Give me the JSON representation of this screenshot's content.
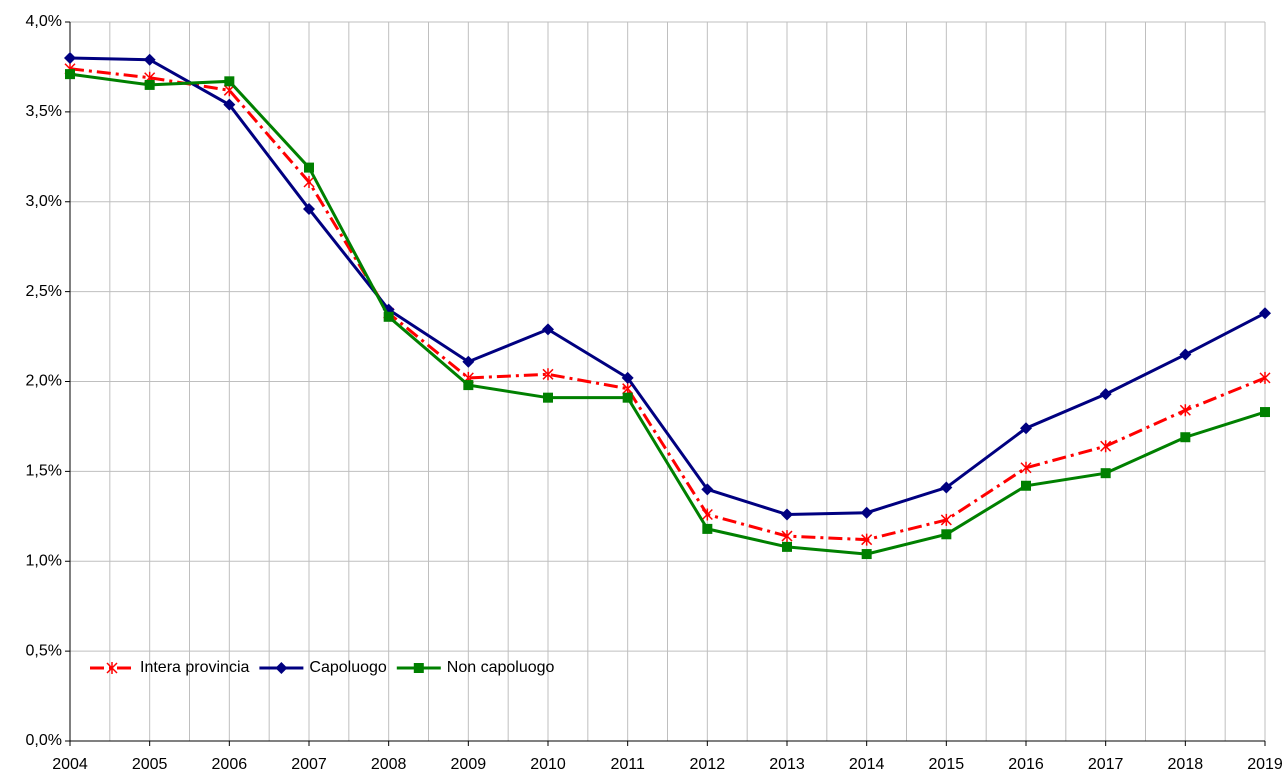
{
  "chart_data": {
    "type": "line",
    "categories": [
      "2004",
      "2005",
      "2006",
      "2007",
      "2008",
      "2009",
      "2010",
      "2011",
      "2012",
      "2013",
      "2014",
      "2015",
      "2016",
      "2017",
      "2018",
      "2019"
    ],
    "series": [
      {
        "name": "Intera provincia",
        "color": "#ff0000",
        "dash": "dashdot",
        "marker": "star",
        "values": [
          3.74,
          3.69,
          3.62,
          3.11,
          2.38,
          2.02,
          2.04,
          1.96,
          1.26,
          1.14,
          1.12,
          1.23,
          1.52,
          1.64,
          1.84,
          2.02
        ]
      },
      {
        "name": "Capoluogo",
        "color": "#000080",
        "marker": "diamond",
        "values": [
          3.8,
          3.79,
          3.54,
          2.96,
          2.4,
          2.11,
          2.29,
          2.02,
          1.4,
          1.26,
          1.27,
          1.41,
          1.74,
          1.93,
          2.15,
          2.38
        ]
      },
      {
        "name": "Non capoluogo",
        "color": "#008000",
        "marker": "square",
        "values": [
          3.71,
          3.65,
          3.67,
          3.19,
          2.36,
          1.98,
          1.91,
          1.91,
          1.18,
          1.08,
          1.04,
          1.15,
          1.42,
          1.49,
          1.69,
          1.83
        ]
      }
    ],
    "ylim": [
      0,
      4
    ],
    "yticks": [
      {
        "value": 0,
        "label": "0,0%"
      },
      {
        "value": 0.5,
        "label": "0,5%"
      },
      {
        "value": 1,
        "label": "1,0%"
      },
      {
        "value": 1.5,
        "label": "1,5%"
      },
      {
        "value": 2,
        "label": "2,0%"
      },
      {
        "value": 2.5,
        "label": "2,5%"
      },
      {
        "value": 3,
        "label": "3,0%"
      },
      {
        "value": 3.5,
        "label": "3,5%"
      },
      {
        "value": 4,
        "label": "4,0%"
      }
    ],
    "grid": true,
    "legend": "lower left"
  }
}
